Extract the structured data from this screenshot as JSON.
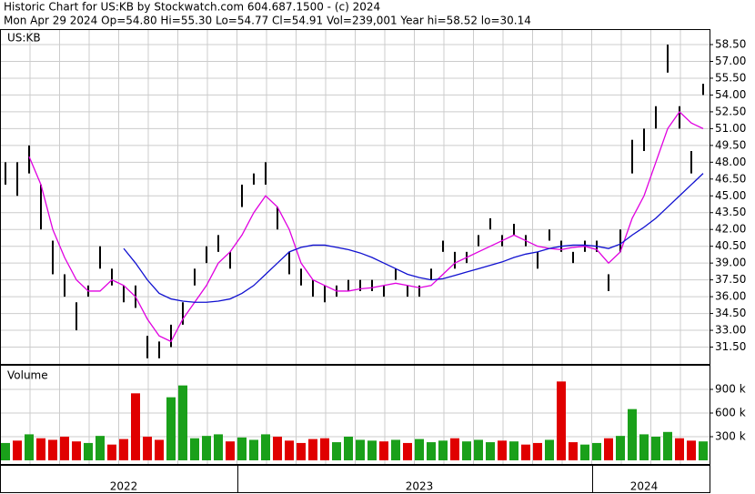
{
  "header": {
    "line1": "Historic Chart for US:KB by Stockwatch.com 604.687.1500 - (c) 2024",
    "line2": "Mon Apr 29 2024  Op=54.80  Hi=55.30  Lo=54.77  Cl=54.91  Vol=239,001  Year hi=58.52  lo=30.14"
  },
  "chart_data": [
    {
      "type": "ohlc",
      "title": "US:KB",
      "bar_color": "#000000",
      "lows": [
        46,
        45,
        47,
        42,
        38,
        36,
        33,
        36,
        38.5,
        37,
        35.5,
        35,
        30.5,
        30.5,
        31.5,
        33.5,
        37,
        39,
        40,
        38.5,
        44,
        46,
        46,
        42,
        38,
        37,
        36,
        35.5,
        36,
        36.5,
        36.5,
        36.5,
        36,
        37.5,
        36,
        36,
        37.5,
        40,
        38.5,
        39,
        40.5,
        42,
        40.5,
        41.5,
        40.5,
        38.5,
        41,
        40,
        39,
        40,
        40,
        36.5,
        40,
        47,
        49,
        51,
        56,
        51,
        47,
        54
      ],
      "highs": [
        48,
        48,
        49.5,
        46,
        41,
        38,
        35.5,
        37,
        40.5,
        38.5,
        37,
        37,
        32.5,
        32,
        33.5,
        35.5,
        38.5,
        40.5,
        41.5,
        40,
        46,
        47,
        48,
        44,
        40,
        38.5,
        37.5,
        37,
        37,
        37.5,
        37.5,
        37.5,
        37,
        38.5,
        37,
        37,
        38.5,
        41,
        40,
        40,
        41.5,
        43,
        41.5,
        42.5,
        41.5,
        40,
        42,
        41,
        40,
        41,
        41,
        38,
        42,
        50,
        51,
        53,
        58.5,
        53,
        49,
        55
      ],
      "ma_lines": [
        {
          "color": "#e000e0",
          "values": [
            null,
            null,
            48.5,
            46,
            42,
            39.5,
            37.5,
            36.5,
            36.5,
            37.5,
            37,
            36,
            34,
            32.5,
            32,
            34,
            35.5,
            37,
            39,
            40,
            41.5,
            43.5,
            45,
            44,
            42,
            39,
            37.5,
            37,
            36.5,
            36.5,
            36.7,
            36.8,
            37,
            37.2,
            37,
            36.8,
            37,
            38,
            39,
            39.5,
            40,
            40.5,
            41,
            41.5,
            41,
            40.5,
            40.3,
            40.2,
            40.4,
            40.5,
            40.2,
            39,
            40,
            43,
            45,
            48,
            51,
            52.5,
            51.5,
            51
          ]
        },
        {
          "color": "#1010d0",
          "values": [
            null,
            null,
            null,
            null,
            null,
            null,
            null,
            null,
            null,
            null,
            40.3,
            39,
            37.5,
            36.3,
            35.8,
            35.6,
            35.5,
            35.5,
            35.6,
            35.8,
            36.3,
            37,
            38,
            39,
            40,
            40.4,
            40.6,
            40.6,
            40.4,
            40.2,
            39.9,
            39.5,
            39,
            38.5,
            38,
            37.7,
            37.5,
            37.6,
            37.9,
            38.2,
            38.5,
            38.8,
            39.1,
            39.5,
            39.8,
            40,
            40.3,
            40.5,
            40.6,
            40.6,
            40.5,
            40.3,
            40.7,
            41.5,
            42.2,
            43,
            44,
            45,
            46,
            47
          ]
        }
      ],
      "ylim": [
        30,
        59.8
      ],
      "yticks": [
        {
          "value": 31.5,
          "label": "31.50"
        },
        {
          "value": 33,
          "label": "33.00"
        },
        {
          "value": 34.5,
          "label": "34.50"
        },
        {
          "value": 36,
          "label": "36.00"
        },
        {
          "value": 37.5,
          "label": "37.50"
        },
        {
          "value": 39,
          "label": "39.00"
        },
        {
          "value": 40.5,
          "label": "40.50"
        },
        {
          "value": 42,
          "label": "42.00"
        },
        {
          "value": 43.5,
          "label": "43.50"
        },
        {
          "value": 45,
          "label": "45.00"
        },
        {
          "value": 46.5,
          "label": "46.50"
        },
        {
          "value": 48,
          "label": "48.00"
        },
        {
          "value": 49.5,
          "label": "49.50"
        },
        {
          "value": 51,
          "label": "51.00"
        },
        {
          "value": 52.5,
          "label": "52.50"
        },
        {
          "value": 54,
          "label": "54.00"
        },
        {
          "value": 55.5,
          "label": "55.50"
        },
        {
          "value": 57,
          "label": "57.00"
        },
        {
          "value": 58.5,
          "label": "58.50"
        }
      ],
      "grid": true
    },
    {
      "type": "bar",
      "title": "Volume",
      "up_color": "#1aa01a",
      "down_color": "#e00000",
      "categories": [
        null,
        null,
        null,
        null,
        null,
        null,
        null,
        null,
        null,
        null,
        "2022",
        null,
        null,
        null,
        null,
        null,
        null,
        null,
        null,
        null,
        null,
        null,
        null,
        null,
        null,
        null,
        null,
        null,
        null,
        null,
        null,
        null,
        null,
        null,
        null,
        "2023",
        null,
        null,
        null,
        null,
        null,
        null,
        null,
        null,
        null,
        null,
        null,
        null,
        null,
        null,
        null,
        null,
        null,
        null,
        "2024",
        null,
        null,
        null,
        null,
        null
      ],
      "values": [
        220000,
        250000,
        330000,
        280000,
        260000,
        300000,
        240000,
        220000,
        310000,
        200000,
        270000,
        850000,
        300000,
        260000,
        800000,
        950000,
        280000,
        310000,
        330000,
        240000,
        290000,
        260000,
        330000,
        300000,
        250000,
        220000,
        270000,
        280000,
        230000,
        300000,
        260000,
        250000,
        240000,
        260000,
        220000,
        270000,
        230000,
        250000,
        280000,
        240000,
        260000,
        230000,
        250000,
        240000,
        200000,
        220000,
        260000,
        1000000,
        230000,
        200000,
        220000,
        280000,
        310000,
        650000,
        330000,
        300000,
        360000,
        280000,
        250000,
        240000
      ],
      "ylim": [
        0,
        1200000
      ],
      "yticks": [
        {
          "value": 300000,
          "label": "300 k"
        },
        {
          "value": 600000,
          "label": "600 k"
        },
        {
          "value": 900000,
          "label": "900 k"
        }
      ],
      "grid": true
    }
  ]
}
